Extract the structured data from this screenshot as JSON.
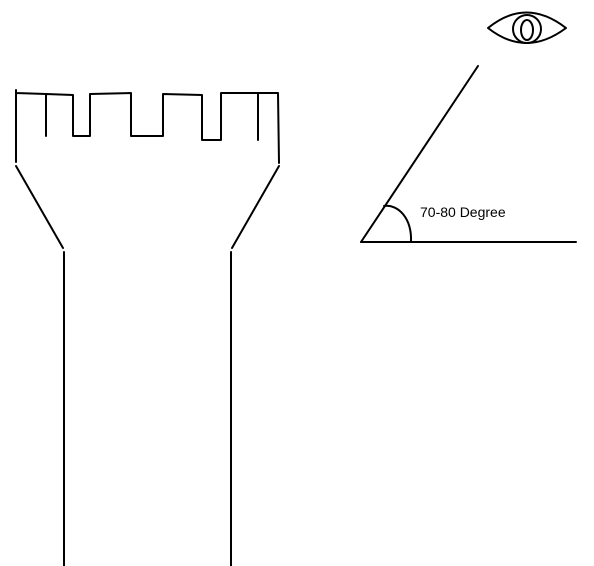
{
  "angle": {
    "label": "70-80 Degree"
  },
  "colors": {
    "background": "#ffffff",
    "stroke": "#000000"
  },
  "icons": [
    "eye-icon"
  ]
}
